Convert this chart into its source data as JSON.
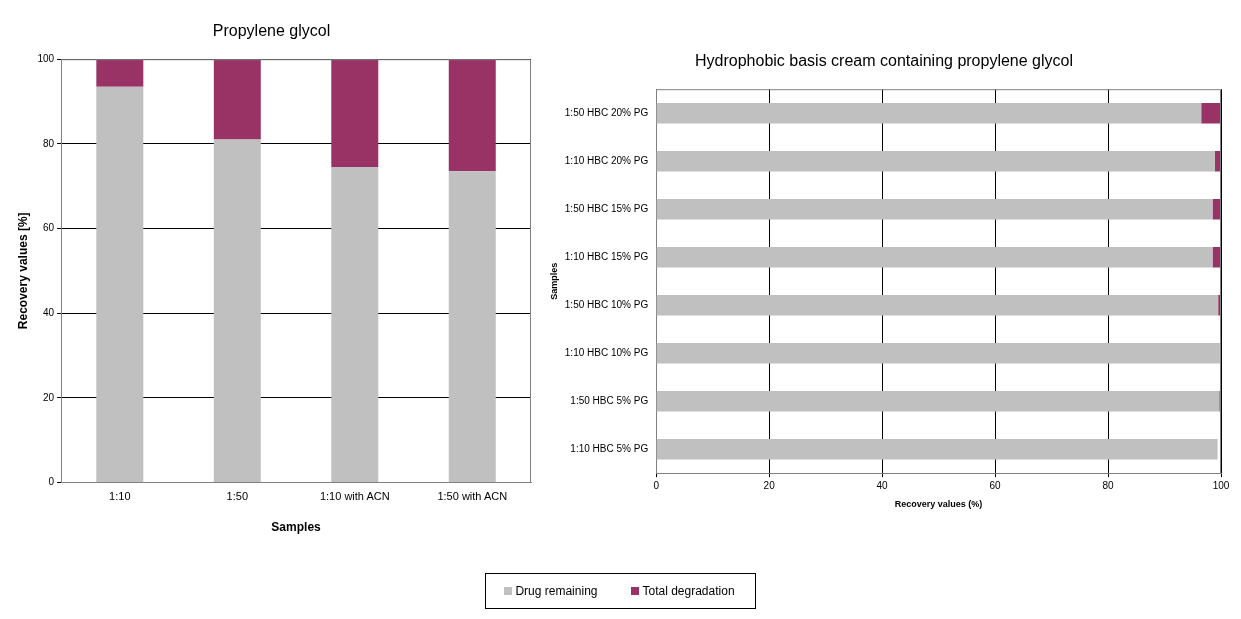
{
  "chart_data": [
    {
      "type": "bar",
      "title": "Propylene glycol",
      "xlabel": "Samples",
      "ylabel": "Recovery values [%]",
      "categories": [
        "1:10",
        "1:50",
        "1:10 with ACN",
        "1:50 with ACN"
      ],
      "stacked": true,
      "series": [
        {
          "name": "Drug remaining",
          "color": "#c0c0c0",
          "values": [
            93.5,
            81,
            74.5,
            73.5
          ]
        },
        {
          "name": "Total degradation",
          "color": "#993366",
          "values": [
            6.5,
            19,
            25.5,
            26.5
          ]
        }
      ],
      "ylim": [
        0,
        100
      ],
      "yticks": [
        0,
        20,
        40,
        60,
        80,
        100
      ],
      "grid": "y",
      "legend": "bottom"
    },
    {
      "type": "bar",
      "title": "Hydrophobic basis cream containing propylene glycol",
      "xlabel": "Recovery values (%)",
      "ylabel": "Samples",
      "orientation": "horizontal",
      "stacked": true,
      "categories": [
        "1:50 HBC 20% PG",
        "1:10 HBC 20% PG",
        "1:50 HBC 15% PG",
        "1:10 HBC 15% PG",
        "1:50 HBC 10% PG",
        "1:10 HBC 10% PG",
        "1:50 HBC 5% PG",
        "1:10 HBC 5% PG"
      ],
      "series": [
        {
          "name": "Drug remaining",
          "color": "#c0c0c0",
          "values": [
            96.5,
            98.9,
            98.5,
            98.5,
            99.5,
            99.8,
            99.7,
            99.4
          ]
        },
        {
          "name": "Total degradation",
          "color": "#993366",
          "values": [
            3.5,
            1.1,
            1.5,
            1.5,
            0.5,
            null,
            0.3,
            0
          ]
        }
      ],
      "xlim": [
        0,
        100
      ],
      "xticks": [
        0,
        20,
        40,
        60,
        80,
        100
      ],
      "grid": "x",
      "legend": "bottom"
    }
  ]
}
